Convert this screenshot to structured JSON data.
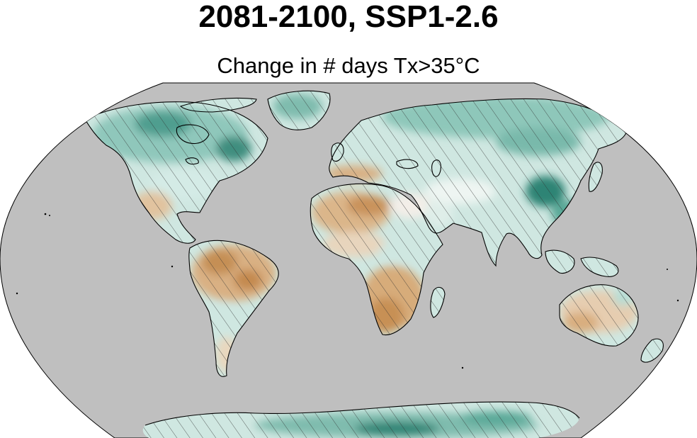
{
  "title": "2081-2100, SSP1-2.6",
  "subtitle": "Change in # days Tx>35°C",
  "map": {
    "projection": "Robinson",
    "hatching": "diagonal",
    "colors": {
      "ocean": "#bfbfbf",
      "land_neutral": "#f4f1ec",
      "increase_light": "#c9e6df",
      "increase_mid": "#9fd1c6",
      "increase_strong": "#5bab9b",
      "increase_dark": "#2b7d6e",
      "decrease_light": "#ead3b6",
      "decrease_mid": "#d9ae7f",
      "decrease_strong": "#c49058",
      "coastline": "#000000",
      "hatch": "#2f2f2f"
    }
  }
}
